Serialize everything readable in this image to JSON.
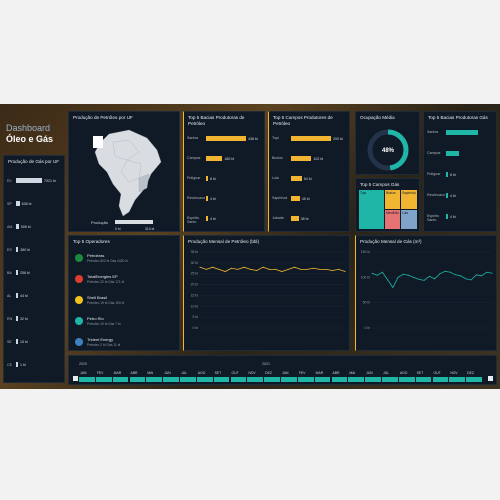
{
  "header": {
    "title_line1": "Dashboard",
    "title_line2": "Óleo e Gás"
  },
  "gas_uf": {
    "title": "Produção de Gás por UF",
    "rows": [
      {
        "uf": "RJ",
        "value": "7021 bi",
        "frac": 1.0
      },
      {
        "uf": "SP",
        "value": "638 bi",
        "frac": 0.14
      },
      {
        "uf": "AM",
        "value": "506 bi",
        "frac": 0.11
      },
      {
        "uf": "ES",
        "value": "380 bi",
        "frac": 0.085
      },
      {
        "uf": "BA",
        "value": "258 bi",
        "frac": 0.06
      },
      {
        "uf": "AL",
        "value": "44 bi",
        "frac": 0.02
      },
      {
        "uf": "RN",
        "value": "32 bi",
        "frac": 0.015
      },
      {
        "uf": "SE",
        "value": "15 bi",
        "frac": 0.01
      },
      {
        "uf": "CE",
        "value": "1 bi",
        "frac": 0.005
      }
    ]
  },
  "map": {
    "title": "Produção de Petróleo por UF",
    "legend_label": "Produção",
    "legend_min": "0 bi",
    "legend_max": "314 bi"
  },
  "basins": {
    "title": "Top 5 Bacias Produtoras de Petróleo",
    "rows": [
      {
        "name": "Santos",
        "value": "438 bi",
        "frac": 1.0
      },
      {
        "name": "Campos",
        "value": "180 bi",
        "frac": 0.41
      },
      {
        "name": "Potiguar",
        "value": "6 bi",
        "frac": 0.02
      },
      {
        "name": "Recôncavo",
        "value": "4 bi",
        "frac": 0.015
      },
      {
        "name": "Espírito Santo",
        "value": "4 bi",
        "frac": 0.015
      }
    ]
  },
  "fields": {
    "title": "Top 5 Campos Produtores de Petróleo",
    "rows": [
      {
        "name": "Tupi",
        "value": "200 bi",
        "frac": 1.0
      },
      {
        "name": "Búzios",
        "value": "102 bi",
        "frac": 0.51
      },
      {
        "name": "Lula",
        "value": "54 bi",
        "frac": 0.27
      },
      {
        "name": "Sapinhoá",
        "value": "45 bi",
        "frac": 0.22
      },
      {
        "name": "Jubarte",
        "value": "38 bi",
        "frac": 0.19
      }
    ]
  },
  "occupancy": {
    "title": "Ocupação Média",
    "value": "48%",
    "fraction": 0.48
  },
  "gas_fields": {
    "title": "Top 5 Campos Gás",
    "tiles": [
      {
        "label": "Tupi",
        "color": "#1fb5a7"
      },
      {
        "label": "Búzios",
        "color": "#f2b531"
      },
      {
        "label": "Sapinhoá",
        "color": "#f2b531"
      },
      {
        "label": "Mexilhão",
        "color": "#e57373"
      },
      {
        "label": "Lula",
        "color": "#7fa3c9"
      }
    ]
  },
  "gas_basins": {
    "title": "Top 5 Bacias Produtoras Gás",
    "rows": [
      {
        "name": "Santos",
        "value": "",
        "frac": 1.0
      },
      {
        "name": "Campos",
        "value": "",
        "frac": 0.4
      },
      {
        "name": "Potiguar",
        "value": "6 bi",
        "frac": 0.02
      },
      {
        "name": "Recôncavo",
        "value": "4 bi",
        "frac": 0.015
      },
      {
        "name": "Espírito Santo",
        "value": "4 bi",
        "frac": 0.015
      }
    ]
  },
  "operators": {
    "title": "Top 5 Operadores",
    "rows": [
      {
        "name": "Petrobras",
        "sub": "Petróleo 602 bi   Gás 4420 bi",
        "logo": "#1b8a3e"
      },
      {
        "name": "TotalEnergies EP",
        "sub": "Petróleo 22 bi   Gás 171 bi",
        "logo": "#e03c31"
      },
      {
        "name": "Shell Brasil",
        "sub": "Petróleo 19 bi   Gás 100 bi",
        "logo": "#f2c21b"
      },
      {
        "name": "Petro Rio",
        "sub": "Petróleo 10 bi   Gás 7 bi",
        "logo": "#1fb5a7"
      },
      {
        "name": "Trident Energy",
        "sub": "Petróleo 2 bi   Gás 11 bi",
        "logo": "#3f7fc2"
      }
    ]
  },
  "chart_data": [
    {
      "type": "line",
      "title": "Produção Mensal de Petróleo (bbl)",
      "ylabels": [
        "35 bi",
        "30 bi",
        "25 bi",
        "20 bi",
        "15 bi",
        "10 bi",
        "5 bi",
        "0 bi"
      ],
      "ylim": [
        0,
        35
      ],
      "color": "#f2b531",
      "values": [
        28,
        27,
        28,
        27,
        26,
        27.5,
        27,
        28,
        27,
        26.5,
        28,
        27,
        27,
        26,
        27,
        28,
        27,
        27,
        27.5,
        27,
        27,
        26.5,
        27,
        26
      ]
    },
    {
      "type": "line",
      "title": "Produção Mensal de Gás (m³)",
      "ylabels": [
        "150 bi",
        "100 bi",
        "50 bi",
        "0 bi"
      ],
      "ylim": [
        0,
        150
      ],
      "color": "#1fb5a7",
      "values": [
        108,
        104,
        110,
        95,
        80,
        100,
        106,
        104,
        100,
        96,
        94,
        102,
        97,
        107,
        112,
        110,
        105,
        103,
        97,
        95,
        105,
        103,
        110,
        108
      ]
    }
  ],
  "timeline": {
    "year1": "2020",
    "year2": "2021",
    "months": [
      "JAN",
      "FEV",
      "MAR",
      "ABR",
      "MAI",
      "JUN",
      "JUL",
      "AGO",
      "SET",
      "OUT",
      "NOV",
      "DEZ",
      "JAN",
      "FEV",
      "MAR",
      "ABR",
      "MAI",
      "JUN",
      "JUL",
      "AGO",
      "SET",
      "OUT",
      "NOV",
      "DEZ"
    ]
  }
}
